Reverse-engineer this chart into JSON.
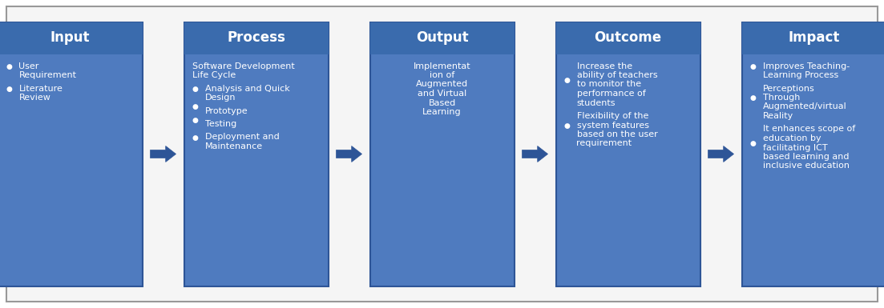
{
  "bg_color": "#f5f5f5",
  "box_color": "#4f7bbf",
  "box_edge_color": "#2e5597",
  "title_bg_color": "#3a6bad",
  "arrow_color": "#2e5597",
  "text_color": "#ffffff",
  "outer_edge_color": "#999999",
  "title_fontsize": 12,
  "body_fontsize": 8.0,
  "fig_width": 11.03,
  "fig_height": 3.85,
  "dpi": 100,
  "boxes": [
    {
      "title": "Input",
      "body_align": "left",
      "lines": [
        {
          "bullet": true,
          "text": "User\nRequirement"
        },
        {
          "bullet": true,
          "text": "Literature\nReview"
        }
      ]
    },
    {
      "title": "Process",
      "body_align": "left",
      "lines": [
        {
          "bullet": false,
          "text": "Software Development\nLife Cycle"
        },
        {
          "bullet": true,
          "text": "Analysis and Quick\nDesign"
        },
        {
          "bullet": true,
          "text": "Prototype"
        },
        {
          "bullet": true,
          "text": "Testing"
        },
        {
          "bullet": true,
          "text": "Deployment and\nMaintenance"
        }
      ]
    },
    {
      "title": "Output",
      "body_align": "center",
      "lines": [
        {
          "bullet": false,
          "text": "Implementat\nion of\nAugmented\nand Virtual\nBased\nLearning"
        }
      ]
    },
    {
      "title": "Outcome",
      "body_align": "left",
      "lines": [
        {
          "bullet": true,
          "text": "Increase the\nability of teachers\nto monitor the\nperformance of\nstudents"
        },
        {
          "bullet": true,
          "text": "Flexibility of the\nsystem features\nbased on the user\nrequirement"
        }
      ]
    },
    {
      "title": "Impact",
      "body_align": "left",
      "lines": [
        {
          "bullet": true,
          "text": "Improves Teaching-\nLearning Process"
        },
        {
          "bullet": true,
          "text": "Perceptions\nThrough\nAugmented/virtual\nReality"
        },
        {
          "bullet": true,
          "text": "It enhances scope of\neducation by\nfacilitating ICT\nbased learning and\ninclusive education"
        }
      ]
    }
  ]
}
